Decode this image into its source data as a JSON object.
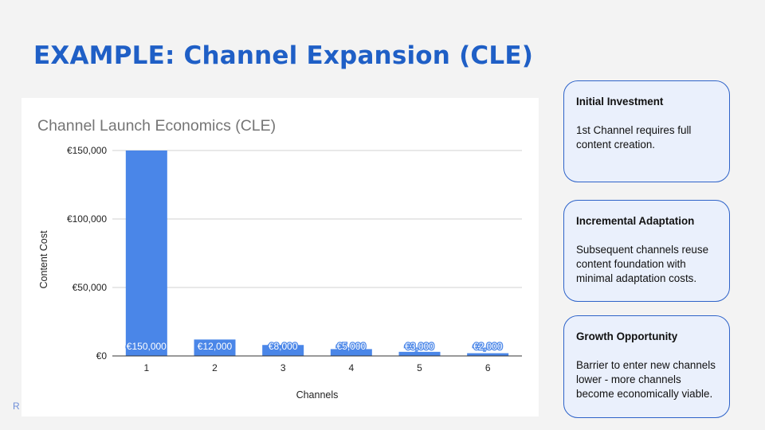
{
  "slide": {
    "title": "EXAMPLE: Channel Expansion (CLE)",
    "footer_mark": "R"
  },
  "colors": {
    "title": "#1f5fc6",
    "bar": "#4a86e8",
    "card_bg": "#eaf0fc",
    "card_border": "#2e63c9"
  },
  "chart_data": {
    "type": "bar",
    "title": "Channel Launch Economics (CLE)",
    "xlabel": "Channels",
    "ylabel": "Content Cost",
    "categories": [
      "1",
      "2",
      "3",
      "4",
      "5",
      "6"
    ],
    "values": [
      150000,
      12000,
      8000,
      5000,
      3000,
      2000
    ],
    "data_labels": [
      "€150,000",
      "€12,000",
      "€8,000",
      "€5,000",
      "€3,000",
      "€2,000"
    ],
    "y_ticks": [
      0,
      50000,
      100000,
      150000
    ],
    "y_tick_labels": [
      "€0",
      "€50,000",
      "€100,000",
      "€150,000"
    ],
    "ylim": [
      0,
      150000
    ],
    "grid": true,
    "legend": "none"
  },
  "cards": [
    {
      "heading": "Initial Investment",
      "body": "1st Channel requires full content creation."
    },
    {
      "heading": "Incremental Adaptation",
      "body": "Subsequent channels reuse content foundation with minimal adaptation costs."
    },
    {
      "heading": "Growth Opportunity",
      "body": "Barrier to enter new channels lower - more channels become economically viable."
    }
  ]
}
